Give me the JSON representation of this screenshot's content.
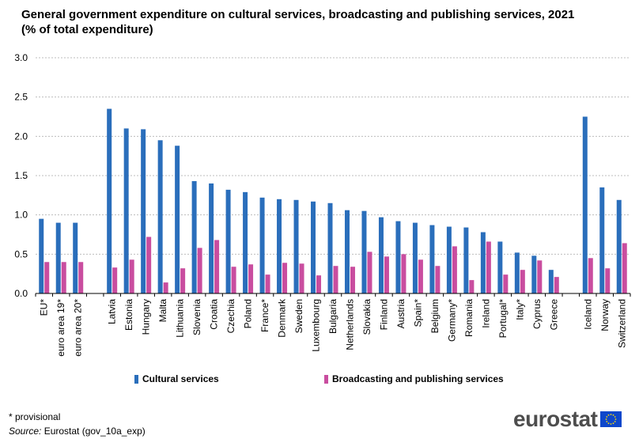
{
  "title": "General government expenditure on cultural services, broadcasting and publishing services, 2021 (% of total expenditure)",
  "footnote": "* provisional",
  "source": {
    "label": "Source:",
    "text": " Eurostat (gov_10a_exp)"
  },
  "brand": {
    "name": "eurostat"
  },
  "chart_data": {
    "type": "bar",
    "title": "General government expenditure on cultural services, broadcasting and publishing services, 2021 (% of total expenditure)",
    "ylim": [
      0,
      3.0
    ],
    "yticks": [
      "0.0",
      "0.5",
      "1.0",
      "1.5",
      "2.0",
      "2.5",
      "3.0"
    ],
    "grid": true,
    "legend_position": "bottom",
    "groups": [
      [
        "EU*",
        "euro area 19*",
        "euro area 20*"
      ],
      [
        "Latvia",
        "Estonia",
        "Hungary",
        "Malta",
        "Lithuania",
        "Slovenia",
        "Croatia",
        "Czechia",
        "Poland",
        "France*",
        "Denmark",
        "Sweden",
        "Luxembourg",
        "Bulgaria",
        "Netherlands",
        "Slovakia",
        "Finland",
        "Austria",
        "Spain*",
        "Belgium",
        "Germany*",
        "Romania",
        "Ireland",
        "Portugal*",
        "Italy*",
        "Cyprus",
        "Greece"
      ],
      [
        "Iceland",
        "Norway",
        "Switzerland"
      ]
    ],
    "categories": [
      "EU*",
      "euro area 19*",
      "euro area 20*",
      "Latvia",
      "Estonia",
      "Hungary",
      "Malta",
      "Lithuania",
      "Slovenia",
      "Croatia",
      "Czechia",
      "Poland",
      "France*",
      "Denmark",
      "Sweden",
      "Luxembourg",
      "Bulgaria",
      "Netherlands",
      "Slovakia",
      "Finland",
      "Austria",
      "Spain*",
      "Belgium",
      "Germany*",
      "Romania",
      "Ireland",
      "Portugal*",
      "Italy*",
      "Cyprus",
      "Greece",
      "Iceland",
      "Norway",
      "Switzerland"
    ],
    "series": [
      {
        "name": "Cultural services",
        "color": "#2a6ebb",
        "values": [
          0.95,
          0.9,
          0.9,
          2.35,
          2.1,
          2.09,
          1.95,
          1.88,
          1.43,
          1.4,
          1.32,
          1.29,
          1.22,
          1.2,
          1.19,
          1.17,
          1.15,
          1.06,
          1.05,
          0.97,
          0.92,
          0.9,
          0.87,
          0.85,
          0.84,
          0.78,
          0.66,
          0.52,
          0.48,
          0.3,
          2.25,
          1.35,
          1.19
        ]
      },
      {
        "name": "Broadcasting and publishing services",
        "color": "#c94d9f",
        "values": [
          0.4,
          0.4,
          0.4,
          0.33,
          0.43,
          0.72,
          0.14,
          0.32,
          0.58,
          0.68,
          0.34,
          0.37,
          0.24,
          0.39,
          0.38,
          0.23,
          0.35,
          0.34,
          0.53,
          0.47,
          0.5,
          0.43,
          0.35,
          0.6,
          0.17,
          0.66,
          0.24,
          0.3,
          0.42,
          0.21,
          0.45,
          0.32,
          0.64
        ]
      }
    ]
  }
}
